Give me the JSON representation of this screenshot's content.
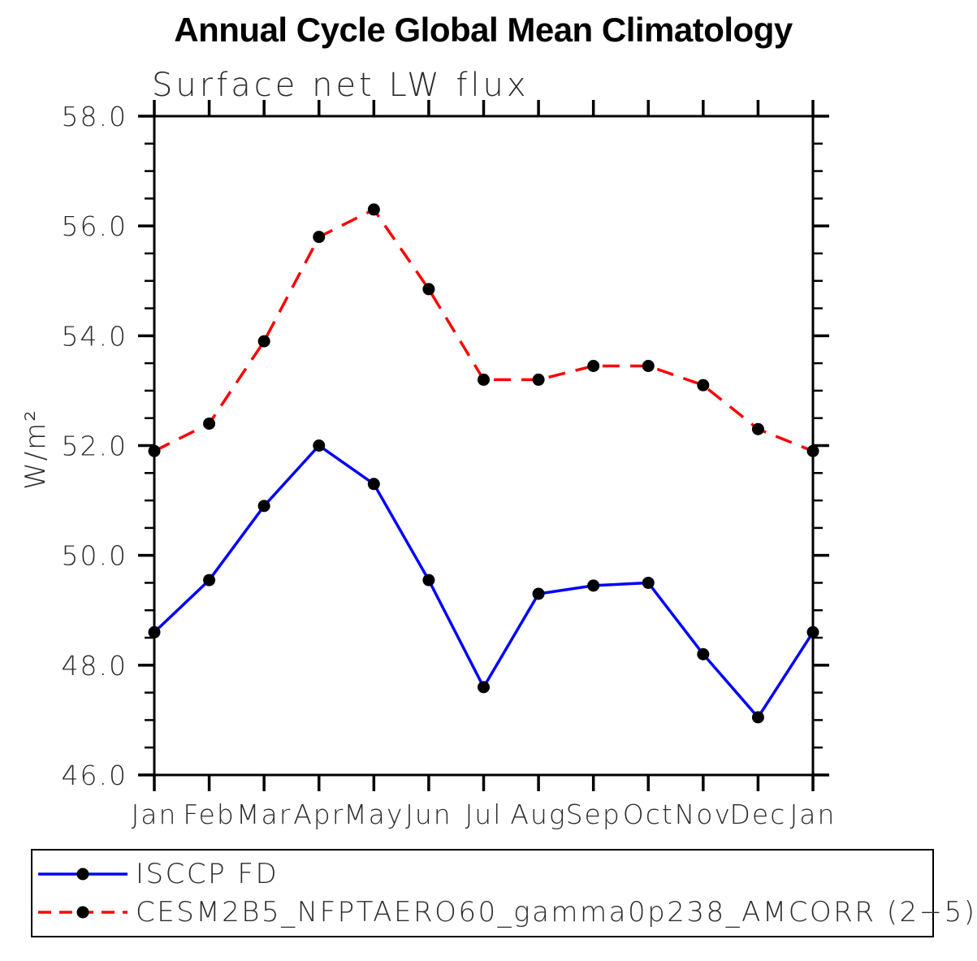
{
  "chart": {
    "title": "Annual Cycle Global Mean Climatology",
    "subtitle": "Surface net LW flux",
    "ylabel": "W/m²"
  },
  "chart_data": {
    "type": "line",
    "categories": [
      "Jan",
      "Feb",
      "Mar",
      "Apr",
      "May",
      "Jun",
      "Jul",
      "Aug",
      "Sep",
      "Oct",
      "Nov",
      "Dec",
      "Jan"
    ],
    "series": [
      {
        "name": "ISCCP FD",
        "color": "#0000ff",
        "style": "solid",
        "marker": "filled-circle",
        "values": [
          48.6,
          49.55,
          50.9,
          52.0,
          51.3,
          49.55,
          47.6,
          49.3,
          49.45,
          49.5,
          48.2,
          47.05,
          48.6
        ]
      },
      {
        "name": "CESM2B5_NFPTAERO60_gamma0p238_AMCORR (2−5)",
        "color": "#ff0000",
        "style": "dashed",
        "marker": "filled-circle",
        "values": [
          51.9,
          52.4,
          53.9,
          55.8,
          56.3,
          54.85,
          53.2,
          53.2,
          53.45,
          53.45,
          53.1,
          52.3,
          51.9
        ]
      }
    ],
    "title": "Annual Cycle Global Mean Climatology",
    "subtitle": "Surface net LW flux",
    "xlabel": "",
    "ylabel": "W/m²",
    "ylim": [
      46.0,
      58.0
    ],
    "ytick_major": [
      46.0,
      48.0,
      50.0,
      52.0,
      54.0,
      56.0,
      58.0
    ],
    "ytick_labels": [
      "46.0",
      "48.0",
      "50.0",
      "52.0",
      "54.0",
      "56.0",
      "58.0"
    ],
    "ytick_minor_step": 0.5,
    "grid": false,
    "marker_color": "#000000",
    "legend_position": "bottom-box"
  },
  "legend": {
    "items": [
      {
        "label": "ISCCP FD",
        "color": "#0000ff",
        "style": "solid"
      },
      {
        "label": "CESM2B5_NFPTAERO60_gamma0p238_AMCORR (2−5)",
        "color": "#ff0000",
        "style": "dashed"
      }
    ]
  }
}
